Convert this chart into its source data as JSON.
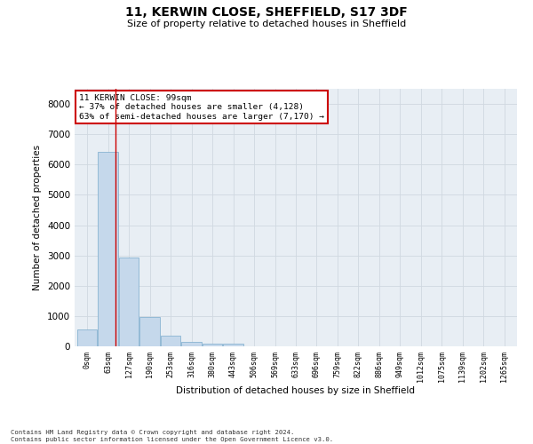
{
  "title": "11, KERWIN CLOSE, SHEFFIELD, S17 3DF",
  "subtitle": "Size of property relative to detached houses in Sheffield",
  "xlabel": "Distribution of detached houses by size in Sheffield",
  "ylabel": "Number of detached properties",
  "bar_labels": [
    "0sqm",
    "63sqm",
    "127sqm",
    "190sqm",
    "253sqm",
    "316sqm",
    "380sqm",
    "443sqm",
    "506sqm",
    "569sqm",
    "633sqm",
    "696sqm",
    "759sqm",
    "822sqm",
    "886sqm",
    "949sqm",
    "1012sqm",
    "1075sqm",
    "1139sqm",
    "1202sqm",
    "1265sqm"
  ],
  "bar_heights": [
    560,
    6420,
    2920,
    980,
    360,
    155,
    90,
    80,
    0,
    0,
    0,
    0,
    0,
    0,
    0,
    0,
    0,
    0,
    0,
    0,
    0
  ],
  "bar_color": "#c5d8eb",
  "bar_edge_color": "#7aaacc",
  "grid_color": "#d0d8e0",
  "background_color": "#e8eef4",
  "vline_x": 1.37,
  "vline_color": "#cc0000",
  "annotation_text": "11 KERWIN CLOSE: 99sqm\n← 37% of detached houses are smaller (4,128)\n63% of semi-detached houses are larger (7,170) →",
  "annotation_box_color": "#ffffff",
  "annotation_box_edge": "#cc0000",
  "ylim": [
    0,
    8500
  ],
  "yticks": [
    0,
    1000,
    2000,
    3000,
    4000,
    5000,
    6000,
    7000,
    8000
  ],
  "footer_line1": "Contains HM Land Registry data © Crown copyright and database right 2024.",
  "footer_line2": "Contains public sector information licensed under the Open Government Licence v3.0."
}
